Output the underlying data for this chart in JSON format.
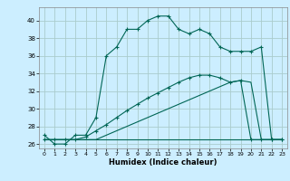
{
  "xlabel": "Humidex (Indice chaleur)",
  "background_color": "#cceeff",
  "grid_color": "#aacccc",
  "line_color": "#006655",
  "x": [
    0,
    1,
    2,
    3,
    4,
    5,
    6,
    7,
    8,
    9,
    10,
    11,
    12,
    13,
    14,
    15,
    16,
    17,
    18,
    19,
    20,
    21,
    22,
    23
  ],
  "line1": [
    27,
    26,
    26,
    27,
    27,
    29,
    36,
    37,
    39,
    39,
    40,
    40.5,
    40.5,
    39,
    38.5,
    39,
    38.5,
    37,
    36.5,
    36.5,
    36.5,
    37,
    26.5,
    26.5
  ],
  "line2": [
    26.5,
    26.5,
    26.5,
    26.5,
    26.8,
    27.5,
    28.2,
    29.0,
    29.8,
    30.5,
    31.2,
    31.8,
    32.4,
    33.0,
    33.5,
    33.8,
    33.8,
    33.5,
    33.0,
    33.2,
    26.5,
    26.5,
    26.5,
    26.5
  ],
  "line3": [
    26.5,
    26.5,
    26.5,
    26.5,
    26.5,
    26.5,
    27.0,
    27.5,
    28.0,
    28.5,
    29.0,
    29.5,
    30.0,
    30.5,
    31.0,
    31.5,
    32.0,
    32.5,
    33.0,
    33.2,
    33.0,
    26.5,
    26.5,
    26.5
  ],
  "line4": [
    26.5,
    26.5,
    26.5,
    26.5,
    26.5,
    26.5,
    26.5,
    26.5,
    26.5,
    26.5,
    26.5,
    26.5,
    26.5,
    26.5,
    26.5,
    26.5,
    26.5,
    26.5,
    26.5,
    26.5,
    26.5,
    26.5,
    26.5,
    26.5
  ],
  "ylim": [
    25.5,
    41.5
  ],
  "xlim": [
    -0.5,
    23.5
  ],
  "yticks": [
    26,
    28,
    30,
    32,
    34,
    36,
    38,
    40
  ],
  "xticks": [
    0,
    1,
    2,
    3,
    4,
    5,
    6,
    7,
    8,
    9,
    10,
    11,
    12,
    13,
    14,
    15,
    16,
    17,
    18,
    19,
    20,
    21,
    22,
    23
  ]
}
